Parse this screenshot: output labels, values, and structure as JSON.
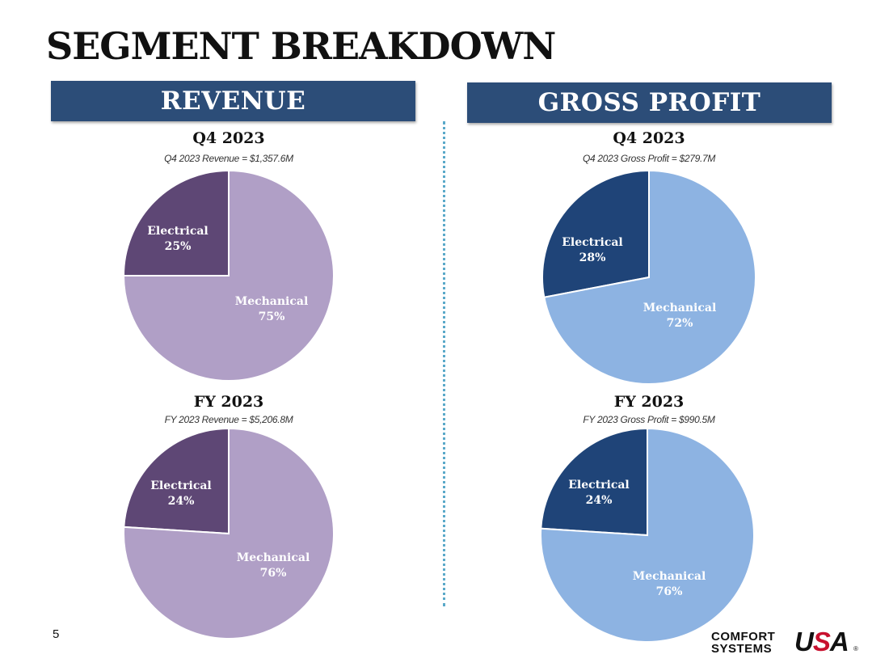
{
  "page": {
    "title": "SEGMENT BREAKDOWN",
    "page_number": "5"
  },
  "banners": {
    "left": "REVENUE",
    "right": "GROSS PROFIT"
  },
  "logo": {
    "line1": "COMFORT",
    "line2": "SYSTEMS",
    "usa_u": "U",
    "usa_s": "S",
    "usa_a": "A",
    "mark": "®",
    "accent_color": "#c8102e"
  },
  "chart_data": [
    {
      "type": "pie",
      "title": "Q4 2023",
      "subtitle": "Q4 2023 Revenue = $1,357.6M",
      "slices": [
        {
          "name": "Electrical",
          "value": 25,
          "label": "25%",
          "color": "#5e4775"
        },
        {
          "name": "Mechanical",
          "value": 75,
          "label": "75%",
          "color": "#b09fc6"
        }
      ]
    },
    {
      "type": "pie",
      "title": "FY 2023",
      "subtitle": "FY 2023 Revenue = $5,206.8M",
      "slices": [
        {
          "name": "Electrical",
          "value": 24,
          "label": "24%",
          "color": "#5e4775"
        },
        {
          "name": "Mechanical",
          "value": 76,
          "label": "76%",
          "color": "#b09fc6"
        }
      ]
    },
    {
      "type": "pie",
      "title": "Q4 2023",
      "subtitle": "Q4 2023 Gross Profit = $279.7M",
      "slices": [
        {
          "name": "Electrical",
          "value": 28,
          "label": "28%",
          "color": "#1f4478"
        },
        {
          "name": "Mechanical",
          "value": 72,
          "label": "72%",
          "color": "#8db3e2"
        }
      ]
    },
    {
      "type": "pie",
      "title": "FY 2023",
      "subtitle": "FY 2023 Gross Profit = $990.5M",
      "slices": [
        {
          "name": "Electrical",
          "value": 24,
          "label": "24%",
          "color": "#1f4478"
        },
        {
          "name": "Mechanical",
          "value": 76,
          "label": "76%",
          "color": "#8db3e2"
        }
      ]
    }
  ]
}
